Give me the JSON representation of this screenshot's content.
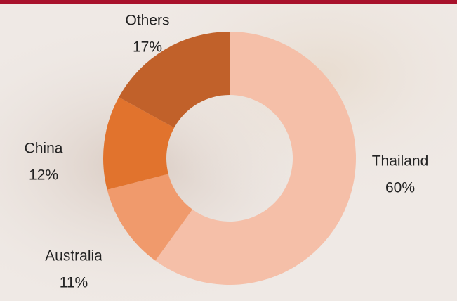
{
  "chart_data": {
    "type": "donut",
    "categories": [
      "Thailand",
      "Australia",
      "China",
      "Others"
    ],
    "values": [
      60,
      11,
      12,
      17
    ],
    "value_labels": [
      "60%",
      "11%",
      "12%",
      "17%"
    ],
    "colors": [
      "#f5bfa8",
      "#f09a6c",
      "#e1732d",
      "#c1612a"
    ]
  }
}
